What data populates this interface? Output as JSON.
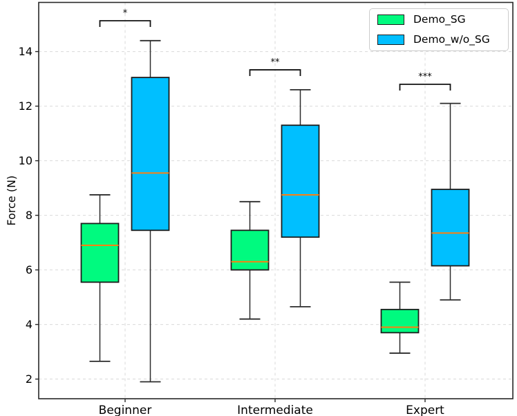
{
  "chart_data": {
    "type": "boxplot",
    "title": "",
    "xlabel": "",
    "ylabel": "Force (N)",
    "categories": [
      "Beginner",
      "Intermediate",
      "Expert"
    ],
    "yticks": [
      2,
      4,
      6,
      8,
      10,
      12,
      14
    ],
    "ylim": [
      1.28,
      15.8
    ],
    "grid": {
      "horizontal": true,
      "vertical": true,
      "style": "dashed",
      "color": "#d9d9d9"
    },
    "legend_position": "upper right",
    "median_color": "#ff7f0e",
    "series": [
      {
        "name": "Demo_SG",
        "color": "#00fa7f",
        "boxes": [
          {
            "category": "Beginner",
            "whisker_low": 2.65,
            "q1": 5.55,
            "median": 6.9,
            "q3": 7.7,
            "whisker_high": 8.75
          },
          {
            "category": "Intermediate",
            "whisker_low": 4.2,
            "q1": 6.0,
            "median": 6.3,
            "q3": 7.45,
            "whisker_high": 8.5
          },
          {
            "category": "Expert",
            "whisker_low": 2.95,
            "q1": 3.7,
            "median": 3.9,
            "q3": 4.55,
            "whisker_high": 5.55
          }
        ]
      },
      {
        "name": "Demo_w/o_SG",
        "color": "#00bfff",
        "boxes": [
          {
            "category": "Beginner",
            "whisker_low": 1.9,
            "q1": 7.45,
            "median": 9.55,
            "q3": 13.05,
            "whisker_high": 14.4
          },
          {
            "category": "Intermediate",
            "whisker_low": 4.65,
            "q1": 7.2,
            "median": 8.75,
            "q3": 11.3,
            "whisker_high": 12.6
          },
          {
            "category": "Expert",
            "whisker_low": 4.9,
            "q1": 6.15,
            "median": 7.35,
            "q3": 8.95,
            "whisker_high": 12.1
          }
        ]
      }
    ],
    "annotations": [
      {
        "category": "Beginner",
        "label": "*",
        "bar_y": 15.13
      },
      {
        "category": "Intermediate",
        "label": "**",
        "bar_y": 13.33
      },
      {
        "category": "Expert",
        "label": "***",
        "bar_y": 12.8
      }
    ]
  }
}
